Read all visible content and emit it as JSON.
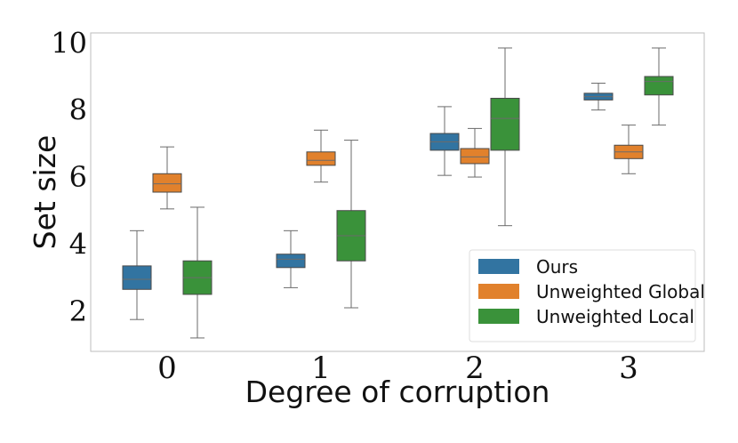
{
  "chart_data": {
    "type": "box",
    "xlabel": "Degree of corruption",
    "ylabel": "Set size",
    "ylim": [
      0.8,
      10.3
    ],
    "yticks": [
      "2",
      "4",
      "6",
      "8",
      "10"
    ],
    "categories": [
      "0",
      "1",
      "2",
      "3"
    ],
    "legend_position": "lower-right",
    "series": [
      {
        "name": "Ours",
        "color": "#3274a1",
        "boxes": [
          {
            "category": "0",
            "whisker_low": 1.75,
            "q1": 2.65,
            "median": 2.95,
            "q3": 3.35,
            "whisker_high": 4.4
          },
          {
            "category": "1",
            "whisker_low": 2.7,
            "q1": 3.3,
            "median": 3.55,
            "q3": 3.7,
            "whisker_high": 4.4
          },
          {
            "category": "2",
            "whisker_low": 6.05,
            "q1": 6.8,
            "median": 7.05,
            "q3": 7.3,
            "whisker_high": 8.1
          },
          {
            "category": "3",
            "whisker_low": 8.0,
            "q1": 8.3,
            "median": 8.4,
            "q3": 8.5,
            "whisker_high": 8.8
          }
        ]
      },
      {
        "name": "Unweighted Global",
        "color": "#e1812c",
        "boxes": [
          {
            "category": "0",
            "whisker_low": 5.05,
            "q1": 5.55,
            "median": 5.8,
            "q3": 6.1,
            "whisker_high": 6.9
          },
          {
            "category": "1",
            "whisker_low": 5.85,
            "q1": 6.35,
            "median": 6.5,
            "q3": 6.75,
            "whisker_high": 7.4
          },
          {
            "category": "2",
            "whisker_low": 6.0,
            "q1": 6.4,
            "median": 6.6,
            "q3": 6.85,
            "whisker_high": 7.45
          },
          {
            "category": "3",
            "whisker_low": 6.1,
            "q1": 6.55,
            "median": 6.75,
            "q3": 6.95,
            "whisker_high": 7.55
          }
        ]
      },
      {
        "name": "Unweighted Local",
        "color": "#3a923a",
        "boxes": [
          {
            "category": "0",
            "whisker_low": 1.2,
            "q1": 2.5,
            "median": 3.0,
            "q3": 3.5,
            "whisker_high": 5.1
          },
          {
            "category": "1",
            "whisker_low": 2.1,
            "q1": 3.5,
            "median": 4.25,
            "q3": 5.0,
            "whisker_high": 7.1
          },
          {
            "category": "2",
            "whisker_low": 4.55,
            "q1": 6.8,
            "median": 7.75,
            "q3": 8.35,
            "whisker_high": 9.85
          },
          {
            "category": "3",
            "whisker_low": 7.55,
            "q1": 8.45,
            "median": 8.85,
            "q3": 9.0,
            "whisker_high": 9.85
          }
        ]
      }
    ]
  }
}
